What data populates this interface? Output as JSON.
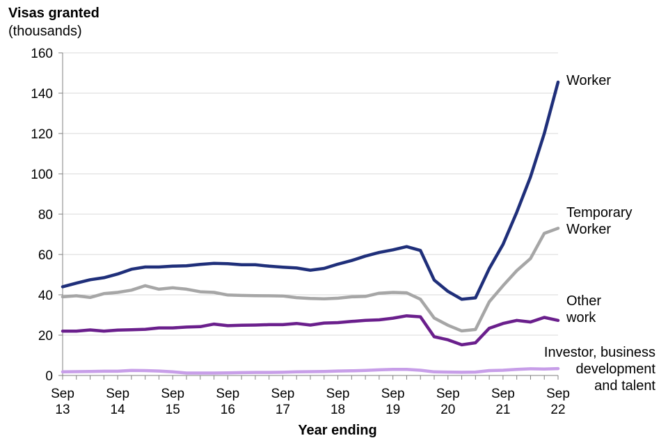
{
  "y_axis_title": "Visas granted",
  "y_axis_subtitle": "(thousands)",
  "x_axis_title": "Year ending",
  "chart_data": {
    "type": "line",
    "title": "",
    "xlabel": "Year ending",
    "ylabel": "Visas granted (thousands)",
    "ylim": [
      0,
      160
    ],
    "yticks": [
      0,
      20,
      40,
      60,
      80,
      100,
      120,
      140,
      160
    ],
    "grid": "horizontal",
    "x_tick_labels": [
      {
        "line1": "Sep",
        "line2": "13",
        "index": 0
      },
      {
        "line1": "Sep",
        "line2": "14",
        "index": 4
      },
      {
        "line1": "Sep",
        "line2": "15",
        "index": 8
      },
      {
        "line1": "Sep",
        "line2": "16",
        "index": 12
      },
      {
        "line1": "Sep",
        "line2": "17",
        "index": 16
      },
      {
        "line1": "Sep",
        "line2": "18",
        "index": 20
      },
      {
        "line1": "Sep",
        "line2": "19",
        "index": 24
      },
      {
        "line1": "Sep",
        "line2": "20",
        "index": 28
      },
      {
        "line1": "Sep",
        "line2": "21",
        "index": 32
      },
      {
        "line1": "Sep",
        "line2": "22",
        "index": 36
      }
    ],
    "series": [
      {
        "name": "Worker",
        "label_lines": [
          "Worker"
        ],
        "color": "#1f2f7a",
        "values": [
          44,
          45.8,
          47.5,
          48.5,
          50.3,
          52.7,
          53.8,
          53.8,
          54.2,
          54.4,
          55.1,
          55.6,
          55.4,
          54.9,
          54.9,
          54.2,
          53.7,
          53.3,
          52.2,
          53.1,
          55.2,
          57,
          59.2,
          61,
          62.3,
          63.9,
          62,
          47.3,
          41.7,
          37.8,
          38.5,
          53,
          65,
          81,
          98.5,
          120,
          145.5
        ]
      },
      {
        "name": "Temporary Worker",
        "label_lines": [
          "Temporary",
          "Worker"
        ],
        "color": "#a6a6a6",
        "values": [
          39,
          39.5,
          38.7,
          40.6,
          41.2,
          42.3,
          44.5,
          42.8,
          43.5,
          42.8,
          41.5,
          41.2,
          39.9,
          39.7,
          39.6,
          39.5,
          39.4,
          38.6,
          38.2,
          38,
          38.3,
          39,
          39.2,
          40.8,
          41.2,
          41,
          37.8,
          28.5,
          24.9,
          22.1,
          22.8,
          36.5,
          44.5,
          52,
          58,
          70.5,
          73
        ]
      },
      {
        "name": "Other work",
        "label_lines": [
          "Other",
          "work"
        ],
        "color": "#6a1f8c",
        "values": [
          22,
          22,
          22.6,
          22,
          22.5,
          22.7,
          22.9,
          23.6,
          23.6,
          24,
          24.2,
          25.5,
          24.7,
          24.9,
          25,
          25.2,
          25.2,
          25.8,
          25,
          26,
          26.2,
          26.8,
          27.3,
          27.6,
          28.4,
          29.6,
          29.1,
          19.2,
          17.7,
          15.2,
          16.2,
          23.4,
          25.8,
          27.3,
          26.5,
          28.8,
          27.3
        ]
      },
      {
        "name": "Investor, business development and talent",
        "label_lines": [
          "Investor, business",
          "development",
          "and talent"
        ],
        "color": "#c79ee8",
        "values": [
          1.8,
          1.9,
          2,
          2.1,
          2.1,
          2.5,
          2.4,
          2.2,
          1.8,
          1.2,
          1.2,
          1.2,
          1.3,
          1.4,
          1.5,
          1.5,
          1.6,
          1.8,
          1.9,
          2,
          2.2,
          2.3,
          2.5,
          2.8,
          3,
          3,
          2.6,
          1.8,
          1.7,
          1.6,
          1.7,
          2.4,
          2.6,
          3,
          3.3,
          3.2,
          3.4
        ]
      }
    ]
  }
}
